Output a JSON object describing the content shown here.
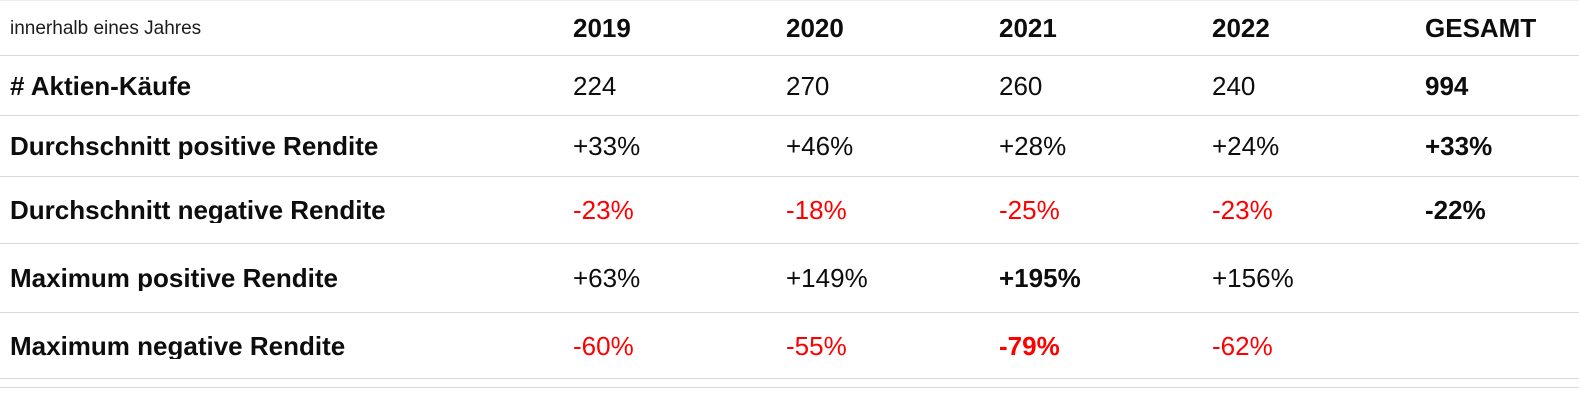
{
  "colors": {
    "text": "#0d0d0d",
    "negative": "#fe0000",
    "separator": "#d9d9d9",
    "background": "#ffffff"
  },
  "chart_data": {
    "type": "table",
    "title": "innerhalb eines Jahres",
    "categories": [
      "2019",
      "2020",
      "2021",
      "2022",
      "GESAMT"
    ],
    "series": [
      {
        "name": "# Aktien-Käufe",
        "values": [
          "224",
          "270",
          "260",
          "240",
          "994"
        ]
      },
      {
        "name": "Durchschnitt positive Rendite",
        "values": [
          "+33%",
          "+46%",
          "+28%",
          "+24%",
          "+33%"
        ]
      },
      {
        "name": "Durchschnitt negative Rendite",
        "values": [
          "-23%",
          "-18%",
          "-25%",
          "-23%",
          "-22%"
        ]
      },
      {
        "name": "Maximum positive Rendite",
        "values": [
          "+63%",
          "+149%",
          "+195%",
          "+156%",
          ""
        ]
      },
      {
        "name": "Maximum negative Rendite",
        "values": [
          "-60%",
          "-55%",
          "-79%",
          "-62%",
          ""
        ]
      }
    ],
    "layout": {
      "grid": "horizontal-separators-only",
      "value_alignment": "left",
      "negative_values_colored": true
    }
  },
  "cell_styles": {
    "0,4": [
      "bold"
    ],
    "1,4": [
      "bold"
    ],
    "2,0": [
      "negative"
    ],
    "2,1": [
      "negative"
    ],
    "2,2": [
      "negative"
    ],
    "2,3": [
      "negative"
    ],
    "2,4": [
      "bold"
    ],
    "3,2": [
      "bold"
    ],
    "4,0": [
      "negative"
    ],
    "4,1": [
      "negative"
    ],
    "4,2": [
      "negative",
      "bold"
    ],
    "4,3": [
      "negative"
    ]
  }
}
